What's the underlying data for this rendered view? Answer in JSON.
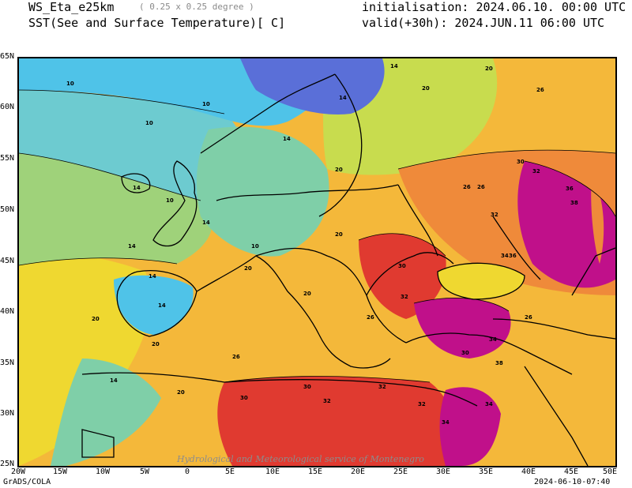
{
  "header": {
    "model": "WS_Eta_e25km",
    "resolution": "( 0.25 x 0.25 degree )",
    "variable": "SST(See and Surface Temperature)[ C]",
    "init_label": "initialisation: 2024.06.10. 00:00 UTC",
    "valid_label": "valid(+30h): 2024.JUN.11 06:00 UTC"
  },
  "axes": {
    "x_ticks": [
      "20W",
      "15W",
      "10W",
      "5W",
      "0",
      "5E",
      "10E",
      "15E",
      "20E",
      "25E",
      "30E",
      "35E",
      "40E",
      "45E",
      "50E"
    ],
    "y_ticks": [
      "65N",
      "60N",
      "55N",
      "50N",
      "45N",
      "40N",
      "35N",
      "30N",
      "25N"
    ]
  },
  "contour_labels": [
    "10",
    "14",
    "20",
    "26",
    "30",
    "32",
    "34",
    "36",
    "38"
  ],
  "colors": {
    "c8": "#5a6fd8",
    "c10": "#4fc3e8",
    "c12": "#6dcbd0",
    "c14": "#7fcfa8",
    "c16": "#9fd27a",
    "c18": "#c8dc4e",
    "c20": "#efd830",
    "c22": "#f4b83a",
    "c26": "#ef8a3a",
    "c30": "#e03a30",
    "c32": "#b81818",
    "c34": "#c0108a",
    "c36": "#d23ad2",
    "land_outline": "#000000"
  },
  "footer": {
    "left": "GrADS/COLA",
    "right": "2024-06-10-07:40",
    "watermark": "Hydrological and Meteorological service of Montenegro"
  }
}
